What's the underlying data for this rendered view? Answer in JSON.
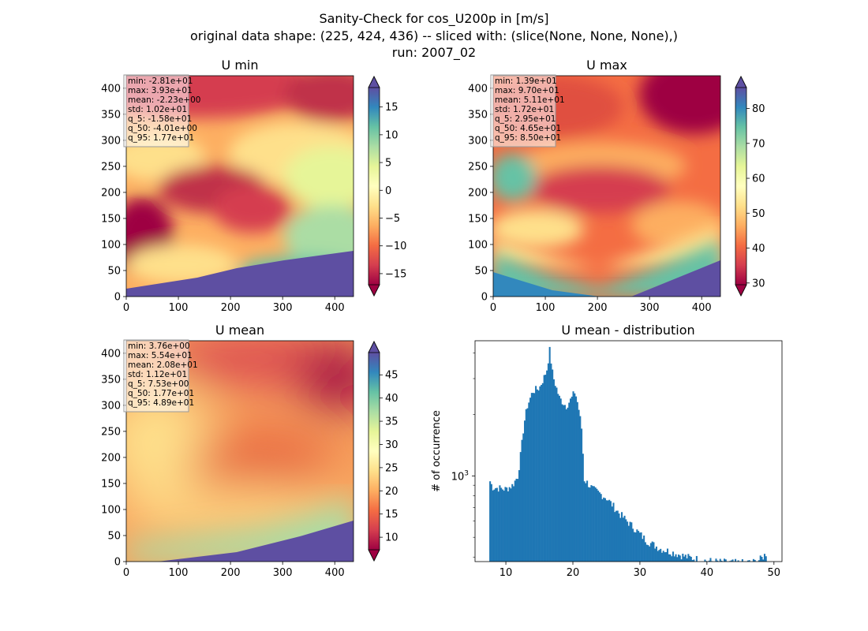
{
  "figure": {
    "title_lines": [
      "Sanity-Check for cos_U200p in [m/s]",
      "original data shape: (225, 424, 436) -- sliced with: (slice(None, None, None),)",
      "run: 2007_02"
    ]
  },
  "chart_data": [
    {
      "id": "umin",
      "type": "heatmap",
      "title": "U min",
      "x_ticks": [
        0,
        100,
        200,
        300,
        400
      ],
      "y_ticks": [
        0,
        50,
        100,
        150,
        200,
        250,
        300,
        350,
        400
      ],
      "xlim": [
        0,
        436
      ],
      "ylim": [
        0,
        424
      ],
      "colormap": "Spectral",
      "colorbar": {
        "vmin": -17,
        "vmax": 18.5,
        "ticks": [
          -15,
          -10,
          -5,
          0,
          5,
          10,
          15
        ],
        "extend": "both"
      },
      "stats": [
        "min: -2.81e+01",
        "max: 3.93e+01",
        "mean: -2.23e+00",
        "std: 1.02e+01",
        "q_5: -1.58e+01",
        "q_50: -4.01e+00",
        "q_95: 1.77e+01"
      ]
    },
    {
      "id": "umax",
      "type": "heatmap",
      "title": "U max",
      "x_ticks": [
        0,
        100,
        200,
        300,
        400
      ],
      "y_ticks": [
        0,
        50,
        100,
        150,
        200,
        250,
        300,
        350,
        400
      ],
      "xlim": [
        0,
        436
      ],
      "ylim": [
        0,
        424
      ],
      "colormap": "Spectral",
      "colorbar": {
        "vmin": 29.5,
        "vmax": 86,
        "ticks": [
          30,
          40,
          50,
          60,
          70,
          80
        ],
        "extend": "both"
      },
      "stats": [
        "min: 1.39e+01",
        "max: 9.70e+01",
        "mean: 5.11e+01",
        "std: 1.72e+01",
        "q_5: 2.95e+01",
        "q_50: 4.65e+01",
        "q_95: 8.50e+01"
      ]
    },
    {
      "id": "umean",
      "type": "heatmap",
      "title": "U mean",
      "x_ticks": [
        0,
        100,
        200,
        300,
        400
      ],
      "y_ticks": [
        0,
        50,
        100,
        150,
        200,
        250,
        300,
        350,
        400
      ],
      "xlim": [
        0,
        436
      ],
      "ylim": [
        0,
        424
      ],
      "colormap": "Spectral",
      "colorbar": {
        "vmin": 7.3,
        "vmax": 49.8,
        "ticks": [
          10,
          15,
          20,
          25,
          30,
          35,
          40,
          45
        ],
        "extend": "both"
      },
      "stats": [
        "min: 3.76e+00",
        "max: 5.54e+01",
        "mean: 2.08e+01",
        "std: 1.12e+01",
        "q_5: 7.53e+00",
        "q_50: 1.77e+01",
        "q_95: 4.89e+01"
      ]
    },
    {
      "id": "hist",
      "type": "bar",
      "title": "U mean - distribution",
      "xlabel": "",
      "ylabel": "# of occurrence",
      "xlim": [
        5.4,
        51.2
      ],
      "x_ticks": [
        10,
        20,
        30,
        40,
        50
      ],
      "y_scale": "log",
      "ylim": [
        380,
        4600
      ],
      "y_major_tick": 1000,
      "y_major_label": "10",
      "y_major_exp": "3",
      "bar_color": "#1f77b4",
      "bin_start": 7.53,
      "bin_end": 48.9,
      "bin_count": 200,
      "profile_x": [
        7.53,
        8.0,
        9.0,
        10.0,
        11.0,
        11.8,
        12.3,
        12.7,
        13.2,
        14.0,
        15.0,
        15.8,
        16.2,
        16.5,
        17.0,
        18.0,
        19.0,
        19.8,
        20.3,
        20.8,
        21.3,
        21.7,
        23.0,
        25.0,
        27.0,
        29.0,
        31.0,
        33.0,
        35.0,
        37.0,
        39.0,
        41.0,
        43.0,
        45.0,
        47.0,
        48.0,
        48.5,
        48.9
      ],
      "profile_y": [
        960,
        880,
        870,
        860,
        900,
        1000,
        1350,
        1800,
        2200,
        2600,
        2700,
        3100,
        3400,
        4200,
        3100,
        2400,
        2200,
        2400,
        2600,
        2200,
        1700,
        960,
        860,
        780,
        650,
        560,
        480,
        440,
        420,
        400,
        388,
        380,
        376,
        374,
        378,
        390,
        405,
        420
      ]
    }
  ]
}
